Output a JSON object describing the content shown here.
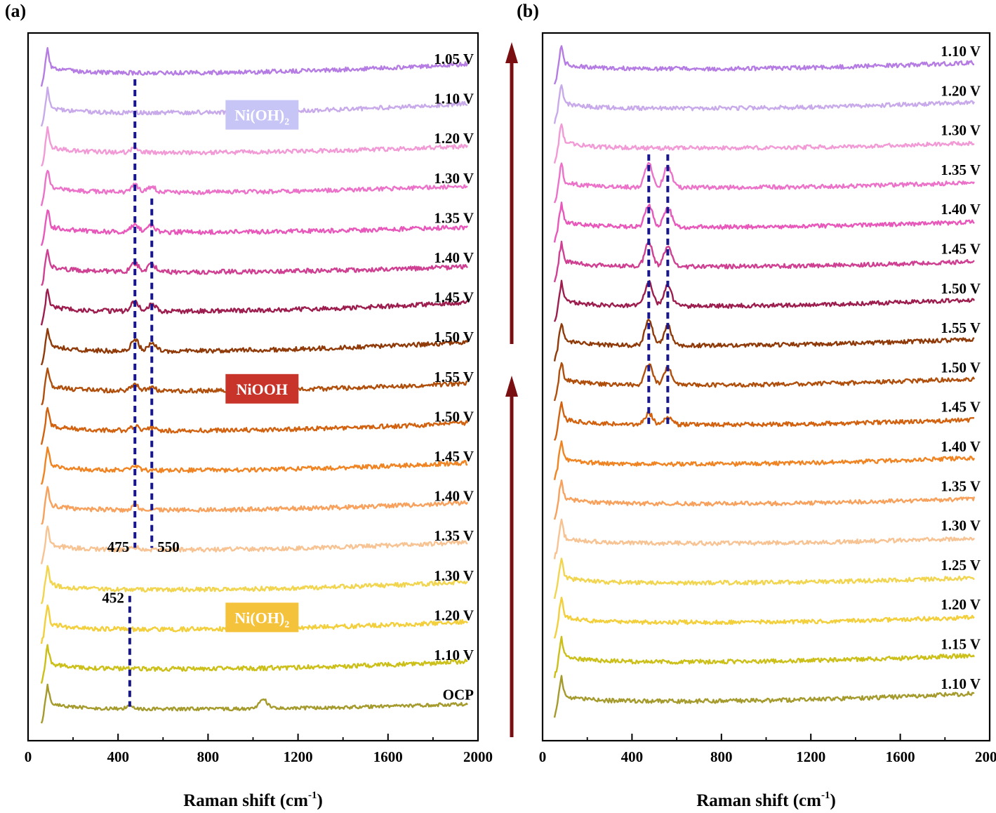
{
  "chart_data": [
    {
      "type": "line",
      "panel_label": "(a)",
      "xlabel_main": "Raman shift (cm",
      "xlabel_sup": "-1",
      "xlabel_close": ")",
      "xlim": [
        0,
        2000
      ],
      "x_ticks": [
        "0",
        "400",
        "800",
        "1200",
        "1600",
        "2000"
      ],
      "y_ticks_shown": false,
      "series": [
        {
          "name": "1.05 V",
          "color": "#b57ce3",
          "peaks": [],
          "noise": 3.0,
          "tail_rise": 12
        },
        {
          "name": "1.10 V",
          "color": "#c8aaea",
          "peaks": [],
          "noise": 3.0,
          "tail_rise": 12
        },
        {
          "name": "1.20 V",
          "color": "#f29ad6",
          "peaks": [
            {
              "x": 475,
              "h": 7
            }
          ],
          "noise": 3.0,
          "tail_rise": 8
        },
        {
          "name": "1.30 V",
          "color": "#ec72c9",
          "peaks": [
            {
              "x": 475,
              "h": 10
            },
            {
              "x": 550,
              "h": 8
            }
          ],
          "noise": 3.0,
          "tail_rise": 8
        },
        {
          "name": "1.35 V",
          "color": "#e858bb",
          "peaks": [
            {
              "x": 475,
              "h": 11
            },
            {
              "x": 550,
              "h": 9
            }
          ],
          "noise": 3.2,
          "tail_rise": 6
        },
        {
          "name": "1.40 V",
          "color": "#cf3f92",
          "peaks": [
            {
              "x": 475,
              "h": 12
            },
            {
              "x": 550,
              "h": 10
            }
          ],
          "noise": 3.2,
          "tail_rise": 6
        },
        {
          "name": "1.45 V",
          "color": "#9c1d4e",
          "peaks": [
            {
              "x": 475,
              "h": 15
            },
            {
              "x": 550,
              "h": 10
            }
          ],
          "noise": 3.2,
          "tail_rise": 12
        },
        {
          "name": "1.50 V",
          "color": "#8f3a08",
          "peaks": [
            {
              "x": 475,
              "h": 16
            },
            {
              "x": 550,
              "h": 11
            }
          ],
          "noise": 3.2,
          "tail_rise": 12
        },
        {
          "name": "1.55 V",
          "color": "#b04f0c",
          "peaks": [
            {
              "x": 475,
              "h": 8
            },
            {
              "x": 550,
              "h": 5
            }
          ],
          "noise": 3.2,
          "tail_rise": 10
        },
        {
          "name": "1.50 V",
          "color": "#d2620f",
          "peaks": [
            {
              "x": 475,
              "h": 6
            },
            {
              "x": 550,
              "h": 4
            }
          ],
          "noise": 3.2,
          "tail_rise": 10
        },
        {
          "name": "1.45 V",
          "color": "#f08422",
          "peaks": [
            {
              "x": 475,
              "h": 5
            }
          ],
          "noise": 3.2,
          "tail_rise": 10
        },
        {
          "name": "1.40 V",
          "color": "#f7a15c",
          "peaks": [
            {
              "x": 475,
              "h": 6
            }
          ],
          "noise": 3.2,
          "tail_rise": 10
        },
        {
          "name": "1.35 V",
          "color": "#f8c393",
          "peaks": [
            {
              "x": 475,
              "h": 4
            }
          ],
          "noise": 3.2,
          "tail_rise": 10
        },
        {
          "name": "1.30 V",
          "color": "#f2d54f",
          "peaks": [],
          "noise": 3.2,
          "tail_rise": 10
        },
        {
          "name": "1.20 V",
          "color": "#f2cf3b",
          "peaks": [],
          "noise": 3.2,
          "tail_rise": 10
        },
        {
          "name": "1.10 V",
          "color": "#cbbf18",
          "peaks": [],
          "noise": 3.2,
          "tail_rise": 10
        },
        {
          "name": "OCP",
          "color": "#a59a2c",
          "peaks": [
            {
              "x": 452,
              "h": 3
            },
            {
              "x": 1045,
              "h": 14
            }
          ],
          "noise": 2.4,
          "tail_rise": 6
        }
      ],
      "guide_lines": [
        {
          "x": 475,
          "label": "475",
          "color": "#17168c",
          "from_series": 12,
          "to_series": 0
        },
        {
          "x": 550,
          "label": "550",
          "color": "#17168c",
          "from_series": 12,
          "to_series": 3
        },
        {
          "x": 452,
          "label": "452",
          "color": "#17168c",
          "from_series": 16,
          "to_series": 13
        }
      ],
      "annotations": [
        {
          "text": "Ni(OH)",
          "sub": "2",
          "bg": "#c7c4f6",
          "fg": "#ffffff",
          "anchor_series": 1
        },
        {
          "text": "NiOOH",
          "sub": "",
          "bg": "#c8342a",
          "fg": "#ffffff",
          "anchor_series": 8
        },
        {
          "text": "Ni(OH)",
          "sub": "2",
          "bg": "#f5c33b",
          "fg": "#ffffff",
          "anchor_series": 14
        }
      ]
    },
    {
      "type": "line",
      "panel_label": "(b)",
      "xlabel_main": "Raman shift (cm",
      "xlabel_sup": "-1",
      "xlabel_close": ")",
      "xlim": [
        0,
        2000
      ],
      "x_ticks": [
        "0",
        "400",
        "800",
        "1200",
        "1600",
        "2000"
      ],
      "y_ticks_shown": false,
      "series": [
        {
          "name": "1.10 V",
          "color": "#b57ce3",
          "peaks": [],
          "noise": 3.0,
          "tail_rise": 8
        },
        {
          "name": "1.20 V",
          "color": "#c8aaea",
          "peaks": [],
          "noise": 3.0,
          "tail_rise": 8
        },
        {
          "name": "1.30 V",
          "color": "#f29ad6",
          "peaks": [],
          "noise": 3.0,
          "tail_rise": 6
        },
        {
          "name": "1.35 V",
          "color": "#ec72c9",
          "peaks": [
            {
              "x": 475,
              "h": 34
            },
            {
              "x": 560,
              "h": 30
            }
          ],
          "noise": 3.0,
          "tail_rise": 6
        },
        {
          "name": "1.40 V",
          "color": "#e858bb",
          "peaks": [
            {
              "x": 475,
              "h": 32
            },
            {
              "x": 560,
              "h": 28
            }
          ],
          "noise": 3.0,
          "tail_rise": 6
        },
        {
          "name": "1.45 V",
          "color": "#cf3f92",
          "peaks": [
            {
              "x": 475,
              "h": 34
            },
            {
              "x": 560,
              "h": 28
            }
          ],
          "noise": 3.0,
          "tail_rise": 6
        },
        {
          "name": "1.50 V",
          "color": "#9c1d4e",
          "peaks": [
            {
              "x": 475,
              "h": 36
            },
            {
              "x": 560,
              "h": 30
            }
          ],
          "noise": 3.0,
          "tail_rise": 8
        },
        {
          "name": "1.55 V",
          "color": "#8f3a08",
          "peaks": [
            {
              "x": 475,
              "h": 36
            },
            {
              "x": 560,
              "h": 28
            }
          ],
          "noise": 3.0,
          "tail_rise": 8
        },
        {
          "name": "1.50 V",
          "color": "#b04f0c",
          "peaks": [
            {
              "x": 475,
              "h": 30
            },
            {
              "x": 560,
              "h": 24
            }
          ],
          "noise": 3.0,
          "tail_rise": 8
        },
        {
          "name": "1.45 V",
          "color": "#d2620f",
          "peaks": [
            {
              "x": 475,
              "h": 16
            },
            {
              "x": 560,
              "h": 12
            }
          ],
          "noise": 3.0,
          "tail_rise": 6
        },
        {
          "name": "1.40 V",
          "color": "#f08422",
          "peaks": [],
          "noise": 3.0,
          "tail_rise": 8
        },
        {
          "name": "1.35 V",
          "color": "#f7a15c",
          "peaks": [],
          "noise": 3.0,
          "tail_rise": 6
        },
        {
          "name": "1.30 V",
          "color": "#f8c393",
          "peaks": [],
          "noise": 3.0,
          "tail_rise": 6
        },
        {
          "name": "1.25 V",
          "color": "#f2d54f",
          "peaks": [],
          "noise": 3.0,
          "tail_rise": 6
        },
        {
          "name": "1.20 V",
          "color": "#f2cf3b",
          "peaks": [],
          "noise": 3.0,
          "tail_rise": 6
        },
        {
          "name": "1.15 V",
          "color": "#cbbf18",
          "peaks": [],
          "noise": 3.0,
          "tail_rise": 8
        },
        {
          "name": "1.10 V",
          "color": "#a59a2c",
          "peaks": [],
          "noise": 3.0,
          "tail_rise": 10
        }
      ],
      "guide_lines": [
        {
          "x": 475,
          "label": "",
          "color": "#17168c",
          "from_series": 9,
          "to_series": 3
        },
        {
          "x": 560,
          "label": "",
          "color": "#17168c",
          "from_series": 9,
          "to_series": 3
        }
      ],
      "annotations": []
    }
  ],
  "arrows": {
    "color": "#7a0f12",
    "count": 2
  }
}
